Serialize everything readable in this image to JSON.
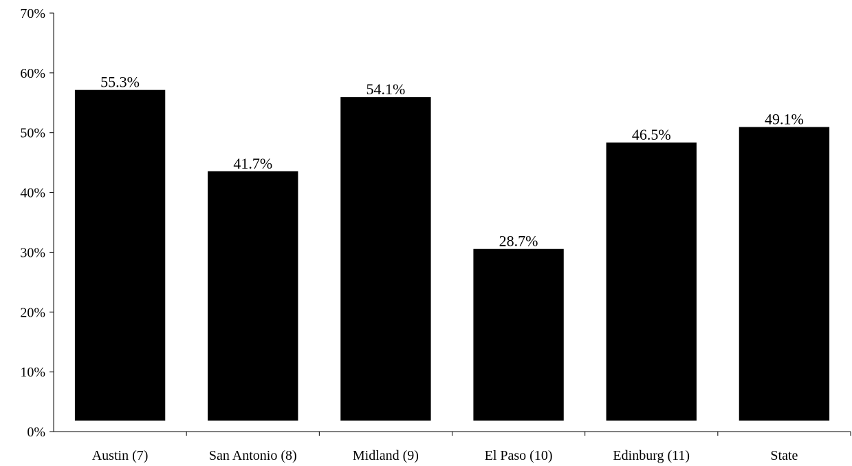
{
  "chart_data": {
    "type": "bar",
    "title": "",
    "xlabel": "",
    "ylabel": "",
    "categories": [
      "Austin (7)",
      "San Antonio (8)",
      "Midland (9)",
      "El Paso (10)",
      "Edinburg (11)",
      "State"
    ],
    "values": [
      55.3,
      41.7,
      54.1,
      28.7,
      46.5,
      49.1
    ],
    "value_labels": [
      "55.3%",
      "41.7%",
      "54.1%",
      "28.7%",
      "46.5%",
      "49.1%"
    ],
    "ylim": [
      0,
      70
    ],
    "yticks": [
      0,
      10,
      20,
      30,
      40,
      50,
      60,
      70
    ],
    "ytick_labels": [
      "0%",
      "10%",
      "20%",
      "30%",
      "40%",
      "50%",
      "60%",
      "70%"
    ],
    "bar_color": "#000000",
    "grid": false,
    "legend": "none"
  }
}
